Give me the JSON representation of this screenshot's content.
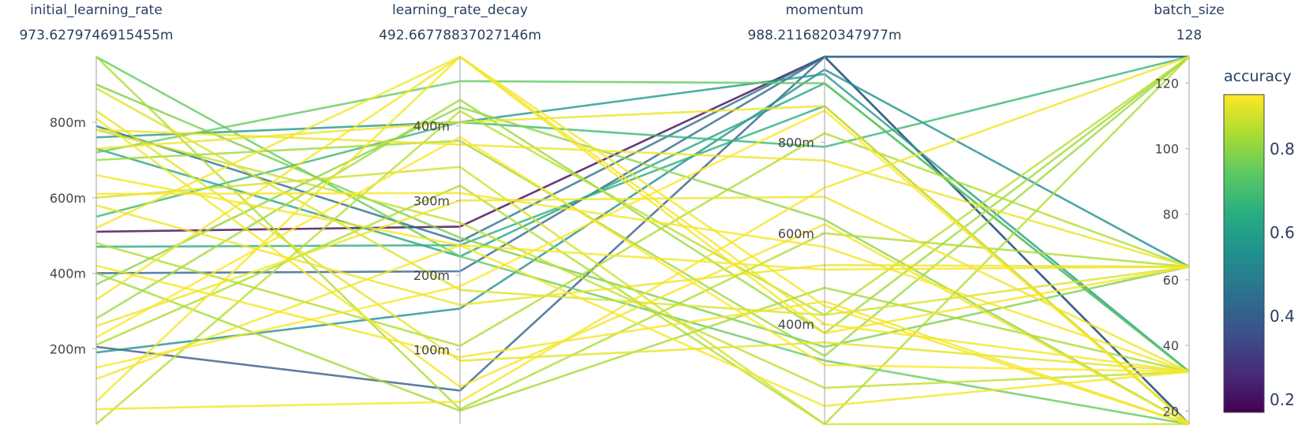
{
  "chart_data": {
    "type": "parallel_coordinates",
    "color_variable": "accuracy",
    "colorbar": {
      "title": "accuracy",
      "range": [
        0.17,
        0.93
      ],
      "ticks": [
        "0.2",
        "0.4",
        "0.6",
        "0.8"
      ],
      "tick_values": [
        0.2,
        0.4,
        0.6,
        0.8
      ],
      "colorscale": [
        "#440154",
        "#472c7a",
        "#3b518b",
        "#2c718e",
        "#21908d",
        "#27ad81",
        "#5cc863",
        "#aadc32",
        "#fde725"
      ]
    },
    "axes": [
      {
        "label": "initial_learning_rate",
        "range_label": "973.6279746915455m",
        "range": [
          0,
          0.9736
        ],
        "ticks": [
          "200m",
          "400m",
          "600m",
          "800m"
        ],
        "tick_values": [
          0.2,
          0.4,
          0.6,
          0.8
        ]
      },
      {
        "label": "learning_rate_decay",
        "range_label": "492.66778837027146m",
        "range": [
          0,
          0.4927
        ],
        "ticks": [
          "100m",
          "200m",
          "300m",
          "400m"
        ],
        "tick_values": [
          0.1,
          0.2,
          0.3,
          0.4
        ]
      },
      {
        "label": "momentum",
        "range_label": "988.2116820347977m",
        "range": [
          0.18,
          0.9882
        ],
        "ticks": [
          "400m",
          "600m",
          "800m"
        ],
        "tick_values": [
          0.4,
          0.6,
          0.8
        ]
      },
      {
        "label": "batch_size",
        "range_label": "128",
        "range": [
          16,
          128
        ],
        "ticks": [
          "20",
          "40",
          "60",
          "80",
          "100",
          "120"
        ],
        "tick_values": [
          20,
          40,
          60,
          80,
          100,
          120
        ]
      }
    ],
    "lines": [
      {
        "values": [
          0.51,
          0.265,
          0.9882,
          16
        ],
        "accuracy": 0.18
      },
      {
        "values": [
          0.205,
          0.045,
          0.9882,
          128
        ],
        "accuracy": 0.4
      },
      {
        "values": [
          0.4,
          0.205,
          0.9882,
          128
        ],
        "accuracy": 0.42
      },
      {
        "values": [
          0.79,
          0.245,
          0.9882,
          16
        ],
        "accuracy": 0.45
      },
      {
        "values": [
          0.19,
          0.155,
          0.96,
          64
        ],
        "accuracy": 0.55
      },
      {
        "values": [
          0.76,
          0.405,
          0.95,
          32
        ],
        "accuracy": 0.58
      },
      {
        "values": [
          0.73,
          0.225,
          0.93,
          32
        ],
        "accuracy": 0.62
      },
      {
        "values": [
          0.47,
          0.24,
          0.88,
          16
        ],
        "accuracy": 0.65
      },
      {
        "values": [
          0.55,
          0.405,
          0.79,
          128
        ],
        "accuracy": 0.68
      },
      {
        "values": [
          0.9736,
          0.225,
          0.32,
          16
        ],
        "accuracy": 0.75
      },
      {
        "values": [
          0.72,
          0.46,
          0.93,
          32
        ],
        "accuracy": 0.75
      },
      {
        "values": [
          0.9,
          0.25,
          0.35,
          64
        ],
        "accuracy": 0.78
      },
      {
        "values": [
          0.37,
          0.425,
          0.63,
          16
        ],
        "accuracy": 0.8
      },
      {
        "values": [
          0.28,
          0.435,
          0.38,
          128
        ],
        "accuracy": 0.82
      },
      {
        "values": [
          0.7,
          0.38,
          0.33,
          128
        ],
        "accuracy": 0.82
      },
      {
        "values": [
          0.21,
          0.32,
          0.18,
          128
        ],
        "accuracy": 0.84
      },
      {
        "values": [
          0.0,
          0.42,
          0.42,
          128
        ],
        "accuracy": 0.85
      },
      {
        "values": [
          0.48,
          0.105,
          0.82,
          64
        ],
        "accuracy": 0.84
      },
      {
        "values": [
          0.78,
          0.27,
          0.26,
          32
        ],
        "accuracy": 0.86
      },
      {
        "values": [
          0.4,
          0.018,
          0.48,
          32
        ],
        "accuracy": 0.83
      },
      {
        "values": [
          0.9736,
          0.02,
          0.6,
          64
        ],
        "accuracy": 0.84
      },
      {
        "values": [
          0.6,
          0.345,
          0.18,
          16
        ],
        "accuracy": 0.88
      },
      {
        "values": [
          0.89,
          0.18,
          0.42,
          64
        ],
        "accuracy": 0.89
      },
      {
        "values": [
          0.83,
          0.085,
          0.36,
          32
        ],
        "accuracy": 0.9
      },
      {
        "values": [
          0.78,
          0.375,
          0.76,
          64
        ],
        "accuracy": 0.91
      },
      {
        "values": [
          0.73,
          0.405,
          0.88,
          16
        ],
        "accuracy": 0.91
      },
      {
        "values": [
          0.61,
          0.31,
          0.57,
          32
        ],
        "accuracy": 0.92
      },
      {
        "values": [
          0.52,
          0.4927,
          0.38,
          64
        ],
        "accuracy": 0.92
      },
      {
        "values": [
          0.33,
          0.4927,
          0.44,
          16
        ],
        "accuracy": 0.92
      },
      {
        "values": [
          0.26,
          0.3,
          0.68,
          32
        ],
        "accuracy": 0.91
      },
      {
        "values": [
          0.12,
          0.24,
          0.52,
          64
        ],
        "accuracy": 0.92
      },
      {
        "values": [
          0.06,
          0.4927,
          0.4,
          32
        ],
        "accuracy": 0.92
      },
      {
        "values": [
          0.15,
          0.185,
          0.87,
          16
        ],
        "accuracy": 0.93
      },
      {
        "values": [
          0.66,
          0.24,
          0.22,
          32
        ],
        "accuracy": 0.92
      },
      {
        "values": [
          0.04,
          0.03,
          0.7,
          128
        ],
        "accuracy": 0.92
      },
      {
        "values": [
          0.23,
          0.385,
          0.31,
          32
        ],
        "accuracy": 0.93
      },
      {
        "values": [
          0.42,
          0.09,
          0.45,
          16
        ],
        "accuracy": 0.92
      },
      {
        "values": [
          0.58,
          0.16,
          0.53,
          64
        ],
        "accuracy": 0.91
      },
      {
        "values": [
          0.81,
          0.05,
          0.62,
          16
        ],
        "accuracy": 0.92
      }
    ]
  }
}
